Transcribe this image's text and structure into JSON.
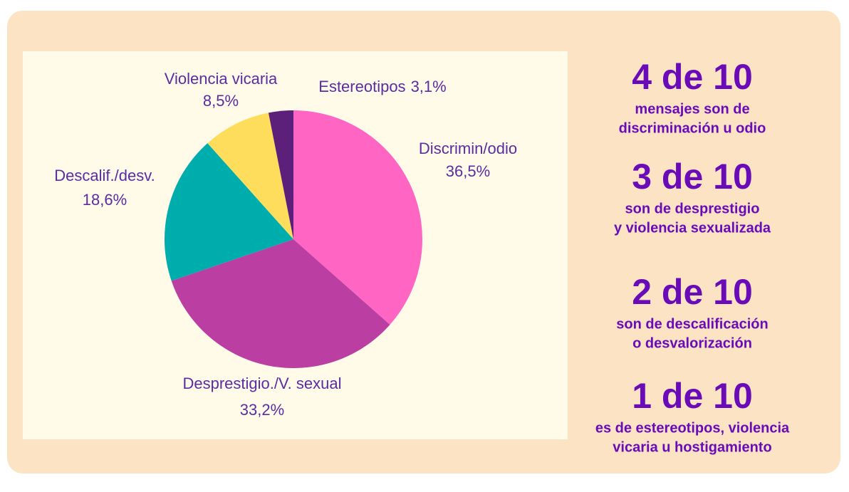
{
  "chart_data": {
    "type": "pie",
    "categories": [
      "Discrimin/odio",
      "Desprestigio./V. sexual",
      "Descalif./desv.",
      "Violencia vicaria",
      "Estereotipos"
    ],
    "values": [
      36.5,
      33.2,
      18.6,
      8.5,
      3.1
    ],
    "value_labels": [
      "36,5%",
      "33,2%",
      "18,6%",
      "8,5%",
      "3,1%"
    ],
    "colors": [
      "#ff66c4",
      "#bb3fa3",
      "#00adad",
      "#ffdd5c",
      "#5c1f7a"
    ]
  },
  "stats": [
    {
      "headline": "4 de 10",
      "lines": [
        "mensajes son de",
        "discriminación u odio"
      ]
    },
    {
      "headline": "3 de 10",
      "lines": [
        "son de desprestigio",
        "y violencia sexualizada"
      ]
    },
    {
      "headline": "2 de 10",
      "lines": [
        "son de descalificación",
        "o  desvalorización"
      ]
    },
    {
      "headline": "1 de 10",
      "lines": [
        "es de estereotipos, violencia",
        "vicaria u hostigamiento"
      ]
    }
  ]
}
